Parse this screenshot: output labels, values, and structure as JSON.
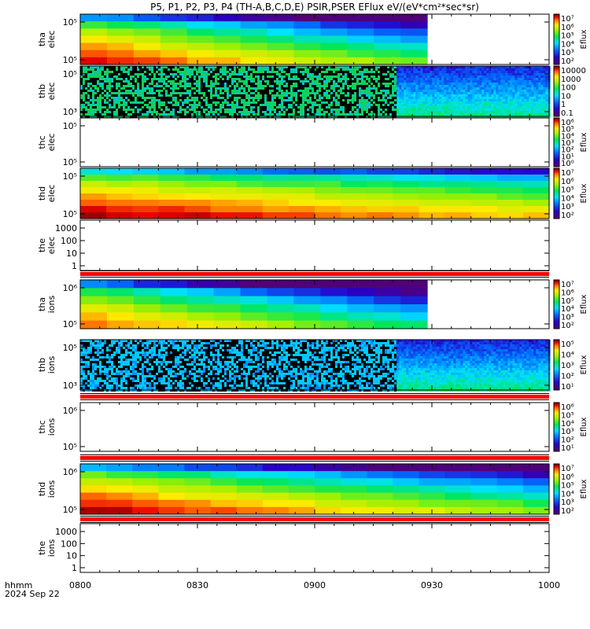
{
  "title": "P5, P1, P2, P3, P4 (TH-A,B,C,D,E) PSIR,PSER EFlux eV/(eV*cm²*sec*sr)",
  "footer": {
    "time_format": "hhmm",
    "date": "2024 Sep 22"
  },
  "colors": {
    "missing_flag": "#ff0000",
    "frame": "#000000",
    "background": "#ffffff"
  },
  "chart_data": {
    "type": "heatmap",
    "x_axis": {
      "range": [
        "08:00",
        "10:00"
      ],
      "tick_labels": [
        "0800",
        "0830",
        "0900",
        "0930",
        "1000"
      ],
      "minor_ticks_per_major": 6
    },
    "panels": [
      {
        "id": "tha-elec",
        "ylabel": "tha\nelec",
        "ytick_labels": [
          "10⁵",
          "10⁵"
        ],
        "pattern": "spectrum",
        "data_end_hour": 9.48,
        "rows": 7,
        "cols": 13,
        "flux_top": 0.35,
        "flux_bottom": 0.97,
        "decay": 0.55,
        "colorbar": {
          "labels": [
            "10⁷",
            "10⁶",
            "10⁵",
            "10⁴",
            "10³",
            "10²"
          ],
          "title": "Eflux"
        }
      },
      {
        "id": "thb-elec",
        "ylabel": "thb\nelec",
        "ytick_labels": [
          "10⁵",
          "10³"
        ],
        "pattern": "noisy",
        "transition_hour": 9.35,
        "colorbar": {
          "labels": [
            "10000",
            "1000",
            "100",
            "10",
            "1",
            "0.1"
          ],
          "title": ""
        }
      },
      {
        "id": "thc-elec",
        "ylabel": "thc\nelec",
        "ytick_labels": [
          "10⁵",
          "10⁵"
        ],
        "pattern": "empty",
        "colorbar": {
          "labels": [
            "10⁶",
            "10⁵",
            "10⁴",
            "10³",
            "10²",
            "10¹",
            "10⁰"
          ],
          "title": "Eflux"
        }
      },
      {
        "id": "thd-elec",
        "ylabel": "thd\nelec",
        "ytick_labels": [
          "10⁵",
          "10⁵"
        ],
        "pattern": "spectrum",
        "data_end_hour": 10.0,
        "rows": 8,
        "cols": 18,
        "flux_top": 0.42,
        "flux_bottom": 1.0,
        "decay": 0.3,
        "colorbar": {
          "labels": [
            "10⁷",
            "10⁶",
            "10⁵",
            "10⁴",
            "10³",
            "10²"
          ],
          "title": "Eflux"
        }
      },
      {
        "id": "the-elec",
        "ylabel": "the\nelec",
        "ytick_labels": [
          "1000",
          "100",
          "10",
          "1"
        ],
        "pattern": "empty",
        "missing_flag": true
      },
      {
        "id": "tha-ions",
        "ylabel": "tha\nions",
        "ytick_labels": [
          "10⁶",
          "10⁵"
        ],
        "pattern": "spectrum",
        "data_end_hour": 9.48,
        "rows": 6,
        "cols": 13,
        "flux_top": 0.3,
        "flux_bottom": 0.9,
        "decay": 0.6,
        "colorbar": {
          "labels": [
            "10⁷",
            "10⁶",
            "10⁵",
            "10⁴",
            "10³",
            "10²"
          ],
          "title": "Eflux"
        }
      },
      {
        "id": "thb-ions",
        "ylabel": "thb\nions",
        "ytick_labels": [
          "10⁵",
          "10³"
        ],
        "pattern": "noisy",
        "transition_hour": 9.35,
        "missing_flag": true,
        "colorbar": {
          "labels": [
            "10⁵",
            "10⁴",
            "10³",
            "10²",
            "10¹"
          ],
          "title": "Eflux"
        }
      },
      {
        "id": "thc-ions",
        "ylabel": "thc\nions",
        "ytick_labels": [
          "10⁶",
          "10⁵"
        ],
        "pattern": "empty",
        "missing_flag": true,
        "colorbar": {
          "labels": [
            "10⁶",
            "10⁵",
            "10⁴",
            "10³",
            "10²",
            "10¹"
          ],
          "title": "Eflux"
        }
      },
      {
        "id": "thd-ions",
        "ylabel": "thd\nions",
        "ytick_labels": [
          "10⁶",
          "10⁵"
        ],
        "pattern": "spectrum",
        "data_end_hour": 10.0,
        "rows": 7,
        "cols": 18,
        "flux_top": 0.38,
        "flux_bottom": 1.0,
        "decay": 0.55,
        "missing_flag": true,
        "colorbar": {
          "labels": [
            "10⁷",
            "10⁶",
            "10⁵",
            "10⁴",
            "10³",
            "10²"
          ],
          "title": "Eflux"
        }
      },
      {
        "id": "the-ions",
        "ylabel": "the\nions",
        "ytick_labels": [
          "1000",
          "100",
          "10",
          "1"
        ],
        "pattern": "empty"
      }
    ]
  }
}
